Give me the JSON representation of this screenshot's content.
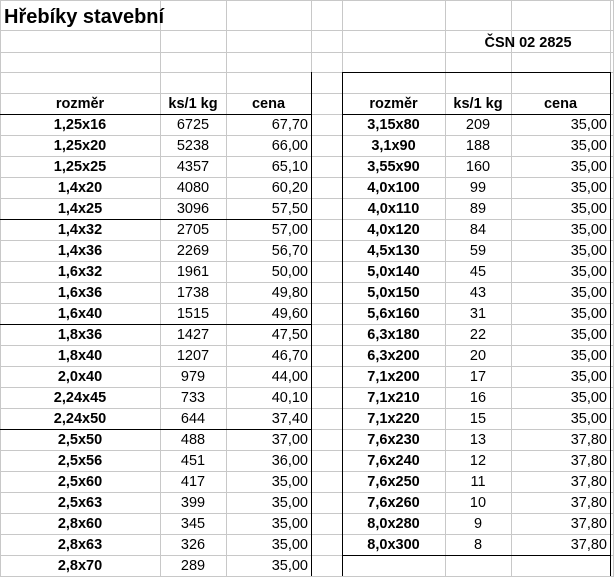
{
  "sheet": {
    "title": "Hřebíky stavební",
    "standard": "ČSN 02 2825",
    "headers": {
      "size": "rozměr",
      "pcs": "ks/1 kg",
      "price": "cena"
    }
  },
  "left_table": [
    [
      "1,25x16",
      "6725",
      "67,70"
    ],
    [
      "1,25x20",
      "5238",
      "66,00"
    ],
    [
      "1,25x25",
      "4357",
      "65,10"
    ],
    [
      "1,4x20",
      "4080",
      "60,20"
    ],
    [
      "1,4x25",
      "3096",
      "57,50"
    ],
    [
      "1,4x32",
      "2705",
      "57,00"
    ],
    [
      "1,4x36",
      "2269",
      "56,70"
    ],
    [
      "1,6x32",
      "1961",
      "50,00"
    ],
    [
      "1,6x36",
      "1738",
      "49,80"
    ],
    [
      "1,6x40",
      "1515",
      "49,60"
    ],
    [
      "1,8x36",
      "1427",
      "47,50"
    ],
    [
      "1,8x40",
      "1207",
      "46,70"
    ],
    [
      "2,0x40",
      "979",
      "44,00"
    ],
    [
      "2,24x45",
      "733",
      "40,10"
    ],
    [
      "2,24x50",
      "644",
      "37,40"
    ],
    [
      "2,5x50",
      "488",
      "37,00"
    ],
    [
      "2,5x56",
      "451",
      "36,00"
    ],
    [
      "2,5x60",
      "417",
      "35,00"
    ],
    [
      "2,5x63",
      "399",
      "35,00"
    ],
    [
      "2,8x60",
      "345",
      "35,00"
    ],
    [
      "2,8x63",
      "326",
      "35,00"
    ],
    [
      "2,8x70",
      "289",
      "35,00"
    ]
  ],
  "right_table": [
    [
      "3,15x80",
      "209",
      "35,00"
    ],
    [
      "3,1x90",
      "188",
      "35,00"
    ],
    [
      "3,55x90",
      "160",
      "35,00"
    ],
    [
      "4,0x100",
      "99",
      "35,00"
    ],
    [
      "4,0x110",
      "89",
      "35,00"
    ],
    [
      "4,0x120",
      "84",
      "35,00"
    ],
    [
      "4,5x130",
      "59",
      "35,00"
    ],
    [
      "5,0x140",
      "45",
      "35,00"
    ],
    [
      "5,0x150",
      "43",
      "35,00"
    ],
    [
      "5,6x160",
      "31",
      "35,00"
    ],
    [
      "6,3x180",
      "22",
      "35,00"
    ],
    [
      "6,3x200",
      "20",
      "35,00"
    ],
    [
      "7,1x200",
      "17",
      "35,00"
    ],
    [
      "7,1x210",
      "16",
      "35,00"
    ],
    [
      "7,1x220",
      "15",
      "35,00"
    ],
    [
      "7,6x230",
      "13",
      "37,80"
    ],
    [
      "7,6x240",
      "12",
      "37,80"
    ],
    [
      "7,6x250",
      "11",
      "37,80"
    ],
    [
      "7,6x260",
      "10",
      "37,80"
    ],
    [
      "8,0x280",
      "9",
      "37,80"
    ],
    [
      "8,0x300",
      "8",
      "37,80"
    ]
  ]
}
